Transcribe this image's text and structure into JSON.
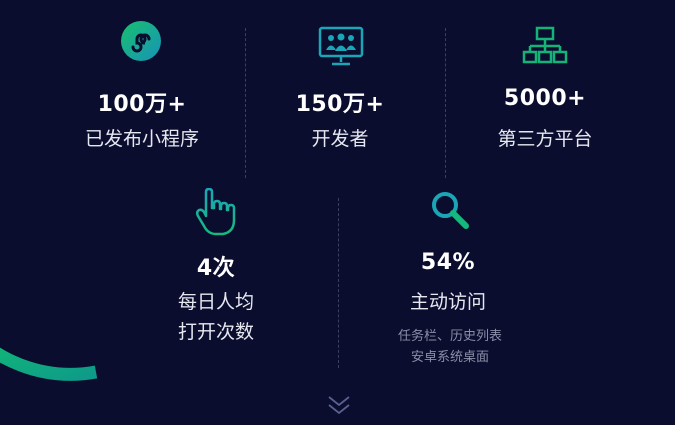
{
  "stats_row1": [
    {
      "value": "100万+",
      "label": "已发布小程序",
      "icon": "mini-program-icon"
    },
    {
      "value": "150万+",
      "label": "开发者",
      "icon": "developers-monitor-icon"
    },
    {
      "value": "5000+",
      "label": "第三方平台",
      "icon": "org-chart-icon"
    }
  ],
  "stats_row2": [
    {
      "value": "4次",
      "label_lines": [
        "每日人均",
        "打开次数"
      ],
      "icon": "pointing-hand-icon"
    },
    {
      "value": "54%",
      "label": "主动访问",
      "note_lines": [
        "任务栏、历史列表",
        "安卓系统桌面"
      ],
      "icon": "search-icon"
    }
  ],
  "colors": {
    "background": "#0b0d2e",
    "accent_green": "#1db98a",
    "accent_teal": "#1aa6b7"
  }
}
